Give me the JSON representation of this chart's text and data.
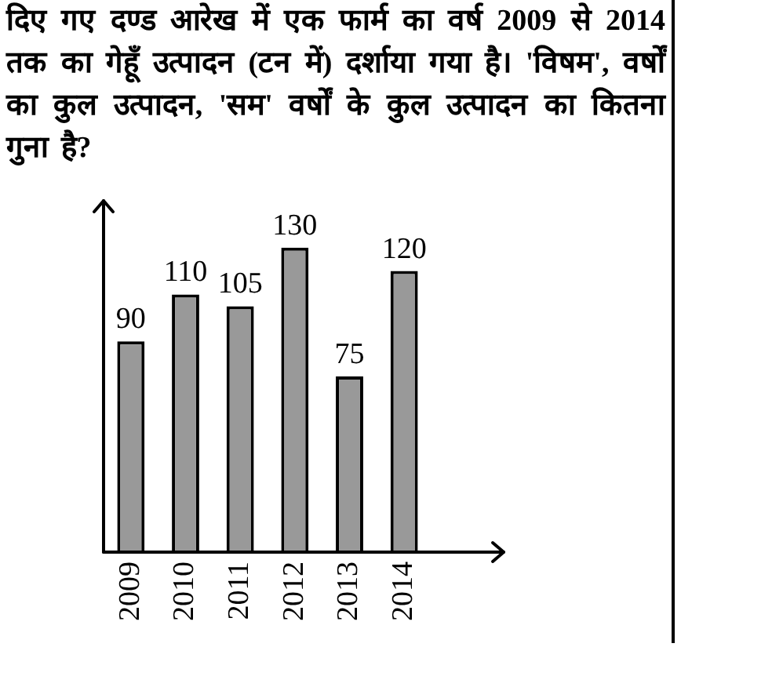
{
  "chart_data": {
    "type": "bar",
    "title": "दिए गए दण्ड आरेख में एक फार्म का वर्ष 2009 से 2014 तक का गेहूँ उत्पादन (टन में) दर्शाया गया है। 'विषम', वर्षों का कुल उत्पादन, 'सम' वर्षों के कुल उत्पादन का कितना गुना है?",
    "categories": [
      "2009",
      "2010",
      "2011",
      "2012",
      "2013",
      "2014"
    ],
    "values": [
      90,
      110,
      105,
      130,
      75,
      120
    ],
    "color": "#999999",
    "ylim": [
      0,
      150
    ],
    "data_labels": true,
    "tick_labels": "x"
  }
}
